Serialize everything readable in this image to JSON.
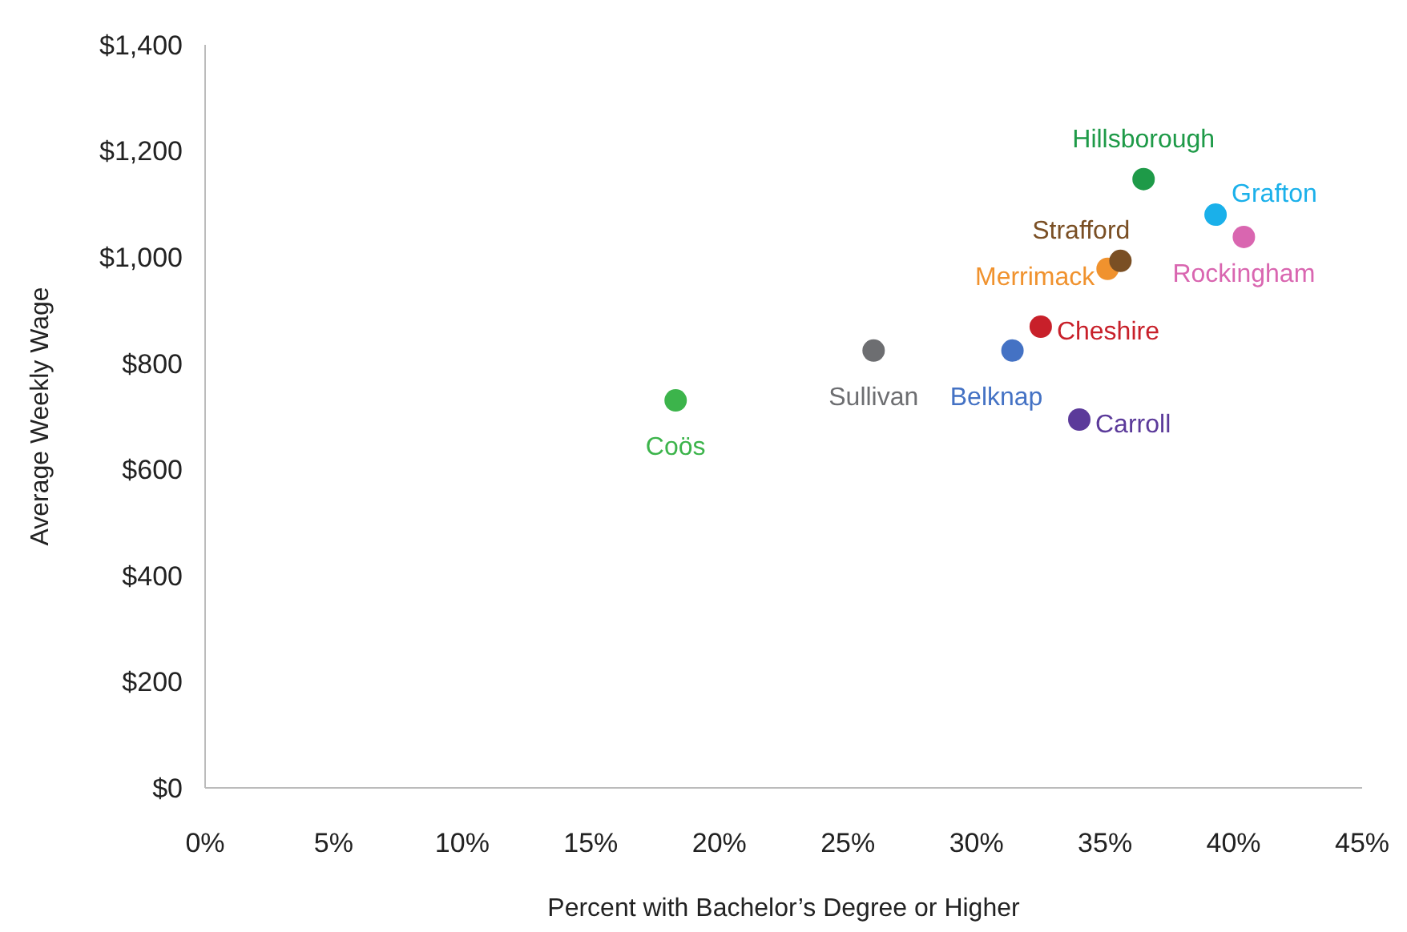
{
  "chart_data": {
    "type": "scatter",
    "xlabel": "Percent with Bachelor’s Degree or Higher",
    "ylabel": "Average Weekly Wage",
    "marker": "circle",
    "grid": false,
    "xlim": [
      0,
      45
    ],
    "xticks": [
      {
        "value": 0,
        "label": "0%"
      },
      {
        "value": 5,
        "label": "5%"
      },
      {
        "value": 10,
        "label": "10%"
      },
      {
        "value": 15,
        "label": "15%"
      },
      {
        "value": 20,
        "label": "20%"
      },
      {
        "value": 25,
        "label": "25%"
      },
      {
        "value": 30,
        "label": "30%"
      },
      {
        "value": 35,
        "label": "35%"
      },
      {
        "value": 40,
        "label": "40%"
      },
      {
        "value": 45,
        "label": "45%"
      }
    ],
    "ylim": [
      0,
      1400
    ],
    "yticks": [
      {
        "value": 0,
        "label": "$0"
      },
      {
        "value": 200,
        "label": "$200"
      },
      {
        "value": 400,
        "label": "$400"
      },
      {
        "value": 600,
        "label": "$600"
      },
      {
        "value": 800,
        "label": "$800"
      },
      {
        "value": 1000,
        "label": "$1,000"
      },
      {
        "value": 1200,
        "label": "$1,200"
      },
      {
        "value": 1400,
        "label": "$1,400"
      }
    ],
    "series": [
      {
        "name": "Coös",
        "color": "#3cb44b",
        "x": [
          18.3
        ],
        "values": [
          730
        ]
      },
      {
        "name": "Sullivan",
        "color": "#6d6e71",
        "x": [
          26.0
        ],
        "values": [
          824
        ]
      },
      {
        "name": "Belknap",
        "color": "#4472c4",
        "x": [
          31.4
        ],
        "values": [
          824
        ]
      },
      {
        "name": "Cheshire",
        "color": "#c8202a",
        "x": [
          32.5
        ],
        "values": [
          869
        ]
      },
      {
        "name": "Carroll",
        "color": "#5b3a9a",
        "x": [
          34.0
        ],
        "values": [
          694
        ]
      },
      {
        "name": "Merrimack",
        "color": "#f0922e",
        "x": [
          35.1
        ],
        "values": [
          978
        ]
      },
      {
        "name": "Strafford",
        "color": "#7a4f24",
        "x": [
          35.6
        ],
        "values": [
          993
        ]
      },
      {
        "name": "Hillsborough",
        "color": "#1e9a48",
        "x": [
          36.5
        ],
        "values": [
          1147
        ]
      },
      {
        "name": "Grafton",
        "color": "#1ab0ea",
        "x": [
          39.3
        ],
        "values": [
          1080
        ]
      },
      {
        "name": "Rockingham",
        "color": "#d966b0",
        "x": [
          40.4
        ],
        "values": [
          1038
        ]
      }
    ]
  }
}
